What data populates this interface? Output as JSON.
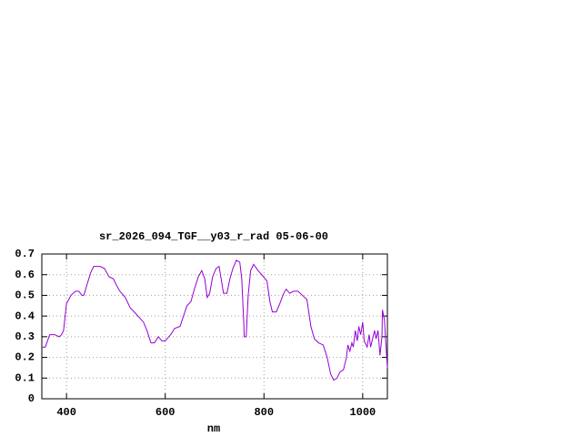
{
  "chart_data": {
    "type": "line",
    "title": "sr_2026_094_TGF__y03_r_rad 05-06-00",
    "x_label": "nm",
    "xlim": [
      350,
      1050
    ],
    "ylim": [
      0,
      0.7
    ],
    "xticks": [
      400,
      600,
      800,
      1000
    ],
    "yticks": [
      0,
      0.1,
      0.2,
      0.3,
      0.4,
      0.5,
      0.6,
      0.7
    ],
    "grid": true,
    "series": [
      {
        "color": "#9400d3",
        "x": [
          350,
          357,
          366,
          376,
          385,
          390,
          394,
          400,
          409,
          418,
          425,
          431,
          435,
          440,
          449,
          455,
          468,
          477,
          486,
          495,
          501,
          508,
          519,
          529,
          541,
          556,
          563,
          571,
          578,
          586,
          593,
          600,
          611,
          619,
          630,
          637,
          644,
          652,
          659,
          667,
          674,
          680,
          685,
          690,
          696,
          703,
          709,
          714,
          718,
          725,
          731,
          737,
          744,
          751,
          755,
          759,
          760,
          764,
          768,
          773,
          779,
          788,
          799,
          806,
          812,
          817,
          825,
          832,
          840,
          845,
          852,
          860,
          869,
          878,
          887,
          895,
          902,
          911,
          920,
          928,
          935,
          941,
          948,
          954,
          961,
          967,
          970,
          974,
          978,
          981,
          985,
          989,
          992,
          996,
          1000,
          1003,
          1009,
          1013,
          1016,
          1020,
          1024,
          1027,
          1031,
          1035,
          1039,
          1040,
          1044,
          1046,
          1050
        ],
        "values": [
          0.25,
          0.25,
          0.31,
          0.31,
          0.3,
          0.31,
          0.33,
          0.46,
          0.5,
          0.52,
          0.52,
          0.5,
          0.5,
          0.54,
          0.61,
          0.64,
          0.64,
          0.63,
          0.59,
          0.58,
          0.55,
          0.52,
          0.49,
          0.44,
          0.41,
          0.37,
          0.33,
          0.27,
          0.27,
          0.3,
          0.28,
          0.28,
          0.31,
          0.34,
          0.35,
          0.4,
          0.45,
          0.47,
          0.53,
          0.59,
          0.62,
          0.58,
          0.49,
          0.51,
          0.59,
          0.63,
          0.64,
          0.57,
          0.51,
          0.51,
          0.58,
          0.63,
          0.67,
          0.66,
          0.58,
          0.37,
          0.3,
          0.3,
          0.5,
          0.62,
          0.65,
          0.62,
          0.59,
          0.57,
          0.47,
          0.42,
          0.42,
          0.46,
          0.51,
          0.53,
          0.51,
          0.52,
          0.52,
          0.5,
          0.48,
          0.35,
          0.29,
          0.27,
          0.26,
          0.2,
          0.12,
          0.09,
          0.1,
          0.13,
          0.14,
          0.2,
          0.26,
          0.23,
          0.27,
          0.25,
          0.33,
          0.28,
          0.35,
          0.31,
          0.37,
          0.28,
          0.25,
          0.31,
          0.25,
          0.29,
          0.33,
          0.29,
          0.33,
          0.21,
          0.3,
          0.43,
          0.38,
          0.3,
          0.15
        ]
      }
    ]
  }
}
